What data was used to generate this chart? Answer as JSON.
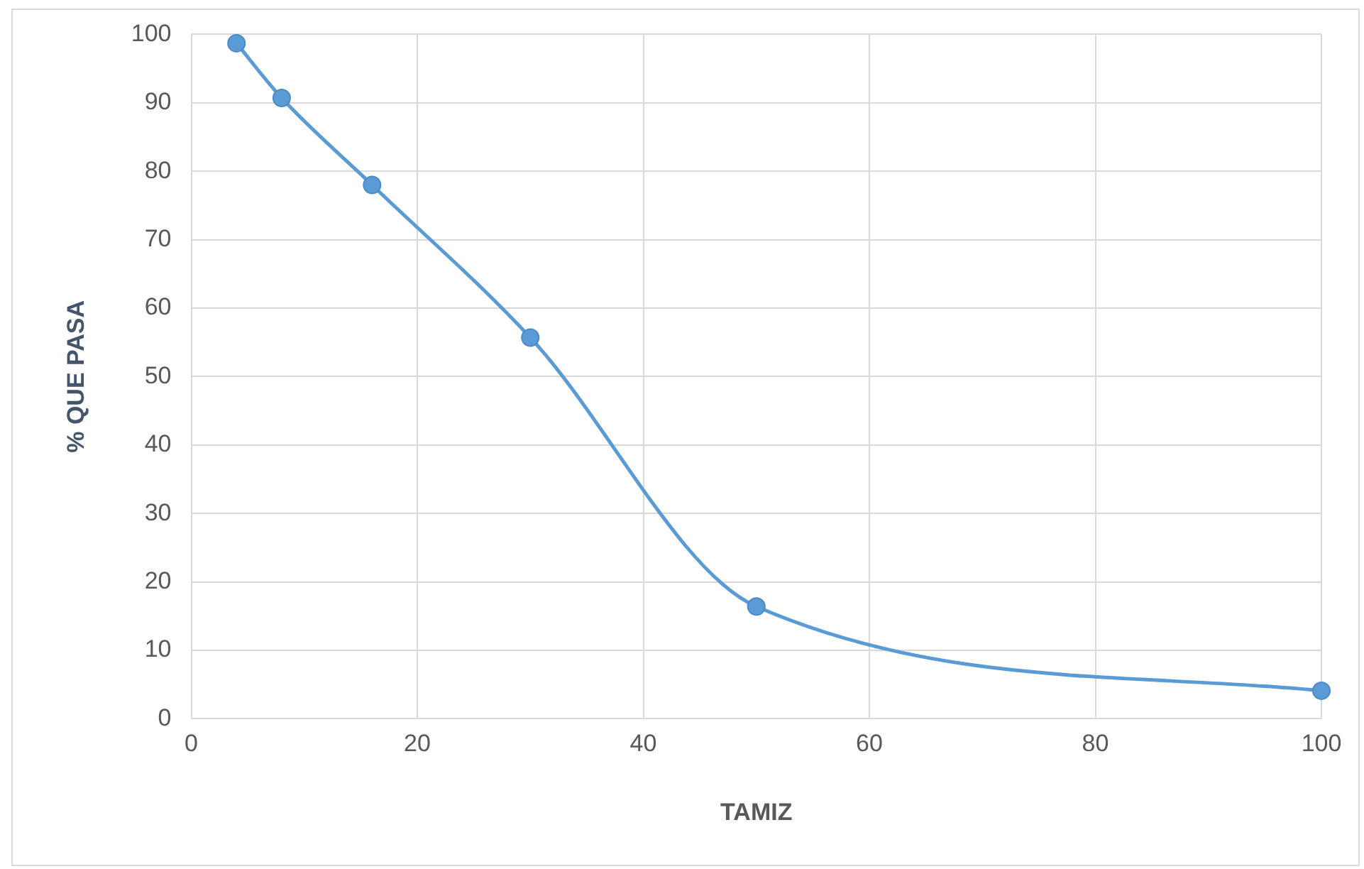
{
  "chart_data": {
    "type": "line",
    "xlabel": "TAMIZ",
    "ylabel": "% QUE PASA",
    "x": [
      4,
      8,
      16,
      30,
      50,
      100
    ],
    "series": [
      {
        "color": "#5b9bd5",
        "values": [
          98.7,
          90.7,
          78,
          55.7,
          16.4,
          4.1
        ]
      }
    ],
    "xlim": [
      0,
      100
    ],
    "xticks": [
      0,
      20,
      40,
      60,
      80,
      100
    ],
    "ylim": [
      0,
      100
    ],
    "yticks": [
      0,
      10,
      20,
      30,
      40,
      50,
      60,
      70,
      80,
      90,
      100
    ],
    "grid": true,
    "legend": false,
    "marker": "circle",
    "line_style": "solid"
  }
}
